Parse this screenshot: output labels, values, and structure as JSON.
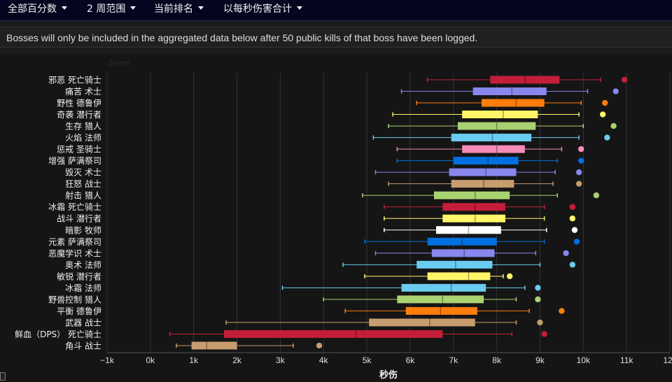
{
  "nav": {
    "items": [
      {
        "label": "全部百分数"
      },
      {
        "label": "2 周范围"
      },
      {
        "label": "当前排名"
      },
      {
        "label": "以每秒伤害合计"
      }
    ]
  },
  "notice": {
    "text": "Bosses will only be included in the aggregated data below after 50 public kills of that boss have been logged."
  },
  "zoom": {
    "label": "Zoom"
  },
  "chart_data": {
    "type": "boxplot",
    "orientation": "horizontal",
    "xlabel": "秒伤",
    "xlim": [
      -1000,
      12000
    ],
    "xticks": [
      -1000,
      0,
      1000,
      2000,
      3000,
      4000,
      5000,
      6000,
      7000,
      8000,
      9000,
      10000,
      11000,
      12000
    ],
    "xtick_labels": [
      "−1k",
      "0k",
      "1k",
      "2k",
      "3k",
      "4k",
      "5k",
      "6k",
      "7k",
      "8k",
      "9k",
      "10k",
      "11k",
      "12k"
    ],
    "grid": true,
    "legend": "none",
    "series": [
      {
        "name": "邪恶 死亡骑士",
        "color": "#c41e3a",
        "min": 6400,
        "q1": 7850,
        "median": 8650,
        "q3": 9450,
        "max": 10400,
        "outlier": 10950
      },
      {
        "name": "痛苦 术士",
        "color": "#8787ed",
        "min": 5800,
        "q1": 7450,
        "median": 8350,
        "q3": 9150,
        "max": 10100,
        "outlier": 10750
      },
      {
        "name": "野性 德鲁伊",
        "color": "#ff7d0a",
        "min": 6150,
        "q1": 7650,
        "median": 8450,
        "q3": 9100,
        "max": 9950,
        "outlier": 10500
      },
      {
        "name": "奇袭 潜行者",
        "color": "#fff569",
        "min": 5600,
        "q1": 7200,
        "median": 8150,
        "q3": 8950,
        "max": 9900,
        "outlier": 10450
      },
      {
        "name": "生存 猎人",
        "color": "#a9d271",
        "min": 5500,
        "q1": 7100,
        "median": 8000,
        "q3": 8900,
        "max": 10000,
        "outlier": 10700
      },
      {
        "name": "火焰 法师",
        "color": "#69ccf0",
        "min": 5150,
        "q1": 6950,
        "median": 7900,
        "q3": 8800,
        "max": 9900,
        "outlier": 10550
      },
      {
        "name": "惩戒 圣骑士",
        "color": "#f58cba",
        "min": 5700,
        "q1": 7200,
        "median": 8000,
        "q3": 8650,
        "max": 9500,
        "outlier": 9950
      },
      {
        "name": "增强 萨满祭司",
        "color": "#0070de",
        "min": 5700,
        "q1": 7000,
        "median": 7800,
        "q3": 8500,
        "max": 9400,
        "outlier": 9950
      },
      {
        "name": "毁灭 术士",
        "color": "#8787ed",
        "min": 5200,
        "q1": 6900,
        "median": 7750,
        "q3": 8450,
        "max": 9350,
        "outlier": 9900
      },
      {
        "name": "狂怒 战士",
        "color": "#c79c6e",
        "min": 5500,
        "q1": 6950,
        "median": 7700,
        "q3": 8400,
        "max": 9300,
        "outlier": 9900
      },
      {
        "name": "射击 猎人",
        "color": "#a9d271",
        "min": 4900,
        "q1": 6550,
        "median": 7500,
        "q3": 8300,
        "max": 9400,
        "outlier": 10300
      },
      {
        "name": "冰霜 死亡骑士",
        "color": "#c41e3a",
        "min": 5400,
        "q1": 6750,
        "median": 7500,
        "q3": 8200,
        "max": 9100,
        "outlier": 9750
      },
      {
        "name": "战斗 潜行者",
        "color": "#fff569",
        "min": 5400,
        "q1": 6750,
        "median": 7500,
        "q3": 8200,
        "max": 9100,
        "outlier": 9750
      },
      {
        "name": "暗影 牧师",
        "color": "#ffffff",
        "min": 5400,
        "q1": 6600,
        "median": 7350,
        "q3": 8100,
        "max": 9150,
        "outlier": 9800
      },
      {
        "name": "元素 萨满祭司",
        "color": "#0070de",
        "min": 4950,
        "q1": 6400,
        "median": 7200,
        "q3": 8000,
        "max": 9100,
        "outlier": 9850
      },
      {
        "name": "恶魔学识 术士",
        "color": "#8787ed",
        "min": 5200,
        "q1": 6500,
        "median": 7250,
        "q3": 7950,
        "max": 8900,
        "outlier": 9600
      },
      {
        "name": "奥术 法师",
        "color": "#69ccf0",
        "min": 4450,
        "q1": 6150,
        "median": 7050,
        "q3": 7900,
        "max": 9000,
        "outlier": 9750
      },
      {
        "name": "敏锐 潜行者",
        "color": "#fff569",
        "min": 4950,
        "q1": 6400,
        "median": 7350,
        "q3": 7850,
        "max": 8150,
        "outlier": 8300
      },
      {
        "name": "冰霜 法师",
        "color": "#69ccf0",
        "min": 3050,
        "q1": 5800,
        "median": 6950,
        "q3": 7750,
        "max": 8650,
        "outlier": 8950
      },
      {
        "name": "野兽控制 猎人",
        "color": "#a9d271",
        "min": 4000,
        "q1": 5700,
        "median": 6750,
        "q3": 7700,
        "max": 8450,
        "outlier": 8950
      },
      {
        "name": "平衡 德鲁伊",
        "color": "#ff7d0a",
        "min": 4500,
        "q1": 5900,
        "median": 6700,
        "q3": 7550,
        "max": 8750,
        "outlier": 9500
      },
      {
        "name": "武器 战士",
        "color": "#c79c6e",
        "min": 1750,
        "q1": 5050,
        "median": 6450,
        "q3": 7500,
        "max": 8450,
        "outlier": 9000
      },
      {
        "name": "鲜血（DPS） 死亡骑士",
        "color": "#c41e3a",
        "min": 450,
        "q1": 1700,
        "median": 4750,
        "q3": 6750,
        "max": 8350,
        "outlier": 9100
      },
      {
        "name": "角斗 战士",
        "color": "#c79c6e",
        "min": 600,
        "q1": 950,
        "median": 1300,
        "q3": 2000,
        "max": 3300,
        "outlier": 3900
      }
    ]
  }
}
